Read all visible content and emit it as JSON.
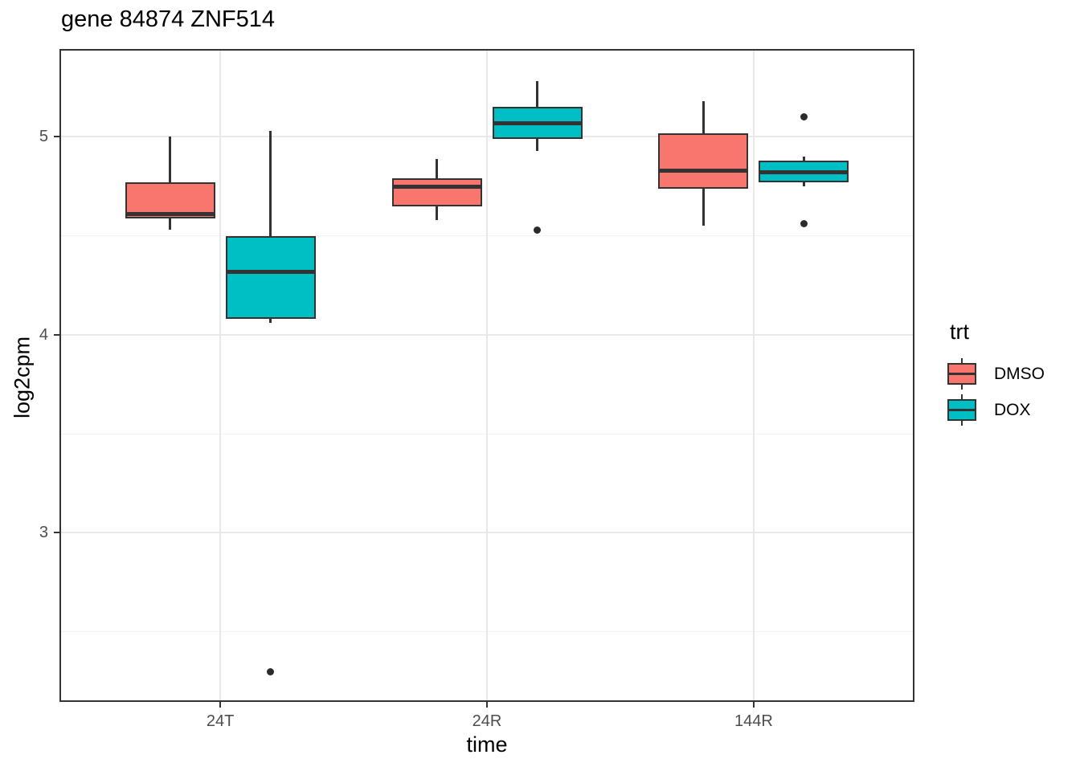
{
  "title": "gene 84874 ZNF514",
  "colors": {
    "dmso_fill": "#F8766D",
    "dox_fill": "#00BFC4",
    "box_border": "#333333",
    "outlier": "#2B2B2B",
    "grid_major": "#E9E9E9",
    "grid_minor": "#F2F2F2",
    "tick_text": "#4D4D4D",
    "panel_border": "#333333"
  },
  "legend": {
    "title": "trt",
    "entries": [
      {
        "label": "DMSO",
        "color": "#F8766D"
      },
      {
        "label": "DOX",
        "color": "#00BFC4"
      }
    ]
  },
  "chart_data": {
    "type": "boxplot",
    "title": "gene 84874 ZNF514",
    "xlabel": "time",
    "ylabel": "log2cpm",
    "categories": [
      "24T",
      "24R",
      "144R"
    ],
    "y_ticks": [
      3,
      4,
      5
    ],
    "ylim": [
      2.15,
      5.44
    ],
    "grid": true,
    "legend_position": "right",
    "legend_title": "trt",
    "series": [
      {
        "name": "DMSO",
        "color": "#F8766D",
        "boxes": [
          {
            "category": "24T",
            "whisker_low": 4.53,
            "q1": 4.59,
            "median": 4.61,
            "q3": 4.77,
            "whisker_high": 5.0,
            "outliers": []
          },
          {
            "category": "24R",
            "whisker_low": 4.58,
            "q1": 4.65,
            "median": 4.75,
            "q3": 4.79,
            "whisker_high": 4.89,
            "outliers": []
          },
          {
            "category": "144R",
            "whisker_low": 4.55,
            "q1": 4.74,
            "median": 4.83,
            "q3": 5.02,
            "whisker_high": 5.18,
            "outliers": []
          }
        ]
      },
      {
        "name": "DOX",
        "color": "#00BFC4",
        "boxes": [
          {
            "category": "24T",
            "whisker_low": 4.06,
            "q1": 4.08,
            "median": 4.32,
            "q3": 4.5,
            "whisker_high": 5.03,
            "outliers": [
              2.3
            ]
          },
          {
            "category": "24R",
            "whisker_low": 4.93,
            "q1": 4.99,
            "median": 5.07,
            "q3": 5.15,
            "whisker_high": 5.28,
            "outliers": [
              4.53
            ]
          },
          {
            "category": "144R",
            "whisker_low": 4.75,
            "q1": 4.77,
            "median": 4.82,
            "q3": 4.88,
            "whisker_high": 4.9,
            "outliers": [
              5.1,
              4.56
            ]
          }
        ]
      }
    ]
  }
}
